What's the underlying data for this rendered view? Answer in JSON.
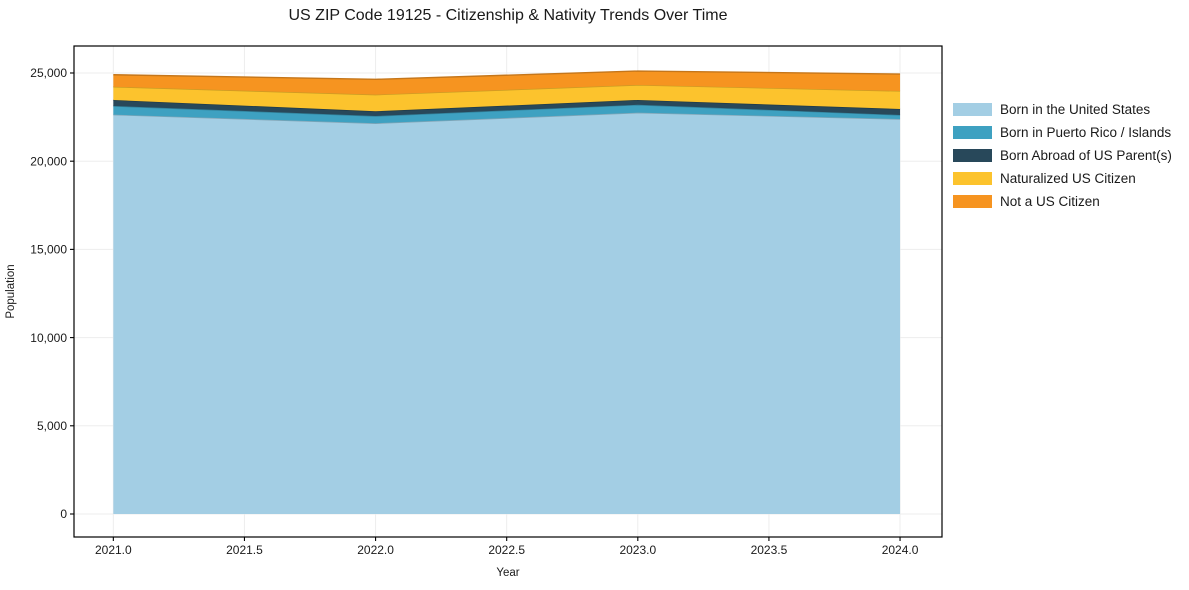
{
  "chart_data": {
    "type": "area",
    "stacked": true,
    "title": "US ZIP Code 19125 - Citizenship & Nativity Trends Over Time",
    "xlabel": "Year",
    "ylabel": "Population",
    "x": [
      2021,
      2022,
      2023,
      2024
    ],
    "series": [
      {
        "name": "Born in the United States",
        "color": "#A3CEE4",
        "values": [
          22640,
          22150,
          22750,
          22390
        ]
      },
      {
        "name": "Born in Puerto Rico / Islands",
        "color": "#3EA1C1",
        "values": [
          490,
          410,
          450,
          230
        ]
      },
      {
        "name": "Born Abroad of US Parent(s)",
        "color": "#28485A",
        "values": [
          340,
          270,
          270,
          340
        ]
      },
      {
        "name": "Naturalized US Citizen",
        "color": "#FCC32D",
        "values": [
          750,
          940,
          850,
          1020
        ]
      },
      {
        "name": "Not a US Citizen",
        "color": "#F69420",
        "values": [
          680,
          870,
          790,
          960
        ]
      }
    ],
    "totals": [
      24900,
      24640,
      25110,
      24940
    ],
    "xticks": {
      "values": [
        2021.0,
        2021.5,
        2022.0,
        2022.5,
        2023.0,
        2023.5,
        2024.0
      ],
      "labels": [
        "2021.0",
        "2021.5",
        "2022.0",
        "2022.5",
        "2023.0",
        "2023.5",
        "2024.0"
      ]
    },
    "yticks": {
      "values": [
        0,
        5000,
        10000,
        15000,
        20000,
        25000
      ],
      "labels": [
        "0",
        "5,000",
        "10,000",
        "15,000",
        "20,000",
        "25,000"
      ]
    },
    "xlim": [
      2020.85,
      2024.16
    ],
    "ylim": [
      -1304,
      26530
    ],
    "grid": true,
    "grid_color": "#ededed",
    "spine_color": "#000000",
    "legend_position": "right-outside"
  }
}
